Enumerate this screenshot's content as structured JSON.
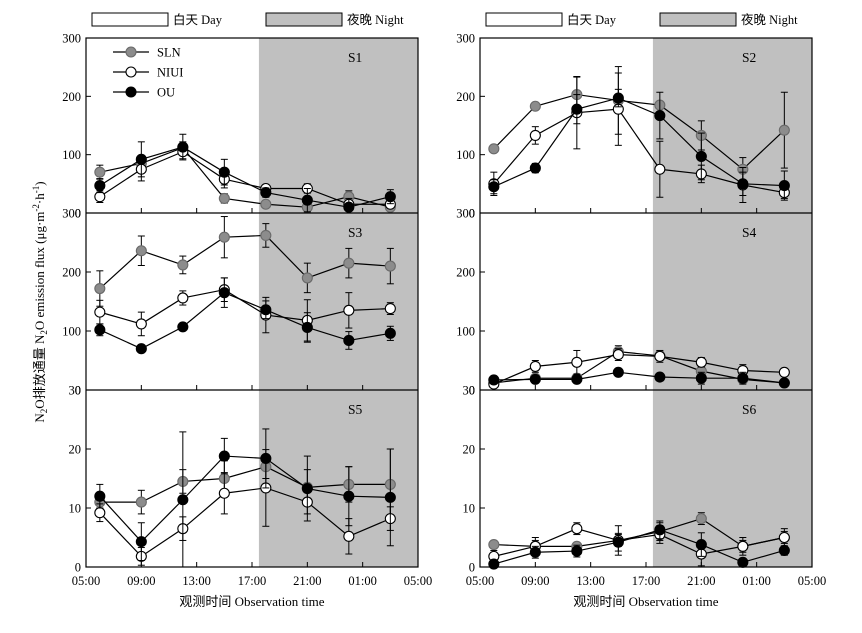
{
  "legend_bands": {
    "day": "白天 Day",
    "night": "夜晚 Night"
  },
  "xlabel": "观测时间 Observation time",
  "ylabel_text": "N2O排放通量 N2O emission flux (μg m-2 h-1)",
  "ylabel_parts": [
    "N",
    "2",
    "O排放通量 N",
    "2",
    "O emission flux (μg·m",
    "-2",
    "·h",
    "-1",
    ")"
  ],
  "series_legend": [
    "SLN",
    "NIUI",
    "OU"
  ],
  "x_ticks": [
    "05:00",
    "09:00",
    "13:00",
    "17:00",
    "21:00",
    "01:00",
    "05:00"
  ],
  "colors": {
    "SLN": "#8c8c8c",
    "NIUI": "#ffffff",
    "OU": "#000000",
    "night_band": "#c0c0c0"
  },
  "chart_data": [
    {
      "type": "line",
      "panel": "S1",
      "ylim": [
        0,
        300
      ],
      "yticks": [
        0,
        100,
        200,
        300
      ],
      "x": [
        6,
        9,
        12,
        15,
        18,
        21,
        24,
        27
      ],
      "night_from": 17.5,
      "series": [
        {
          "name": "SLN",
          "values": [
            70,
            85,
            112,
            25,
            15,
            10,
            28,
            10
          ],
          "errors": [
            12,
            12,
            10,
            8,
            5,
            5,
            10,
            5
          ]
        },
        {
          "name": "NIUI",
          "values": [
            28,
            75,
            105,
            58,
            42,
            42,
            15,
            15
          ],
          "errors": [
            10,
            20,
            12,
            15,
            5,
            8,
            5,
            5
          ]
        },
        {
          "name": "OU",
          "values": [
            47,
            92,
            113,
            70,
            35,
            22,
            10,
            28
          ],
          "errors": [
            12,
            30,
            22,
            22,
            8,
            20,
            15,
            12
          ]
        }
      ]
    },
    {
      "type": "line",
      "panel": "S2",
      "ylim": [
        0,
        300
      ],
      "yticks": [
        0,
        100,
        200,
        300
      ],
      "x": [
        6,
        9,
        12,
        15,
        18,
        21,
        24,
        27
      ],
      "night_from": 17.5,
      "series": [
        {
          "name": "SLN",
          "values": [
            110,
            183,
            203,
            193,
            185,
            133,
            75,
            142
          ],
          "errors": [
            5,
            5,
            30,
            58,
            5,
            25,
            20,
            65
          ]
        },
        {
          "name": "NIUI",
          "values": [
            50,
            133,
            172,
            178,
            75,
            67,
            48,
            35
          ],
          "errors": [
            20,
            15,
            62,
            62,
            48,
            15,
            30,
            10
          ]
        },
        {
          "name": "OU",
          "values": [
            45,
            77,
            178,
            197,
            167,
            97,
            50,
            47
          ],
          "errors": [
            12,
            8,
            25,
            15,
            40,
            40,
            20,
            25
          ]
        }
      ]
    },
    {
      "type": "line",
      "panel": "S3",
      "ylim": [
        0,
        300
      ],
      "yticks": [
        0,
        100,
        200,
        300
      ],
      "x": [
        6,
        9,
        12,
        15,
        18,
        21,
        24,
        27
      ],
      "night_from": 17.5,
      "series": [
        {
          "name": "SLN",
          "values": [
            172,
            236,
            212,
            259,
            262,
            190,
            215,
            210
          ],
          "errors": [
            30,
            25,
            15,
            35,
            20,
            25,
            25,
            30
          ]
        },
        {
          "name": "NIUI",
          "values": [
            132,
            112,
            156,
            170,
            127,
            118,
            135,
            138
          ],
          "errors": [
            20,
            20,
            12,
            20,
            30,
            35,
            30,
            10
          ]
        },
        {
          "name": "OU",
          "values": [
            102,
            70,
            107,
            165,
            136,
            106,
            84,
            96
          ],
          "errors": [
            10,
            5,
            5,
            25,
            15,
            25,
            15,
            12
          ]
        }
      ]
    },
    {
      "type": "line",
      "panel": "S4",
      "ylim": [
        0,
        300
      ],
      "yticks": [
        0,
        100,
        200,
        300
      ],
      "x": [
        6,
        9,
        12,
        15,
        18,
        21,
        24,
        27
      ],
      "night_from": 17.5,
      "series": [
        {
          "name": "SLN",
          "values": [
            12,
            20,
            20,
            65,
            58,
            32,
            18,
            12
          ],
          "errors": [
            5,
            5,
            5,
            10,
            8,
            5,
            5,
            5
          ]
        },
        {
          "name": "NIUI",
          "values": [
            10,
            40,
            47,
            60,
            57,
            47,
            33,
            30
          ],
          "errors": [
            5,
            10,
            20,
            10,
            10,
            8,
            10,
            5
          ]
        },
        {
          "name": "OU",
          "values": [
            17,
            18,
            18,
            30,
            22,
            20,
            20,
            12
          ],
          "errors": [
            5,
            5,
            5,
            5,
            5,
            10,
            10,
            5
          ]
        }
      ]
    },
    {
      "type": "line",
      "panel": "S5",
      "ylim": [
        0,
        30
      ],
      "yticks": [
        0,
        10,
        20,
        30
      ],
      "x": [
        6,
        9,
        12,
        15,
        18,
        21,
        24,
        27
      ],
      "night_from": 17.5,
      "series": [
        {
          "name": "SLN",
          "values": [
            11,
            11,
            14.5,
            15,
            17,
            13.5,
            14,
            14
          ],
          "errors": [
            1.5,
            2,
            2,
            3,
            2,
            3,
            3,
            6
          ]
        },
        {
          "name": "NIUI",
          "values": [
            9.2,
            1.8,
            6.5,
            12.5,
            13.4,
            11,
            5.2,
            8.2
          ],
          "errors": [
            1.5,
            1.5,
            2,
            3.5,
            6.5,
            2,
            3,
            2
          ]
        },
        {
          "name": "OU",
          "values": [
            12,
            4.3,
            11.4,
            18.8,
            18.4,
            13.3,
            12,
            11.8
          ],
          "errors": [
            2,
            3.2,
            11.5,
            3,
            5,
            5.5,
            5,
            8.2
          ]
        }
      ]
    },
    {
      "type": "line",
      "panel": "S6",
      "ylim": [
        0,
        30
      ],
      "yticks": [
        0,
        10,
        20,
        30
      ],
      "x": [
        6,
        9,
        12,
        15,
        18,
        21,
        24,
        27
      ],
      "night_from": 17.5,
      "series": [
        {
          "name": "SLN",
          "values": [
            3.8,
            3.5,
            3.5,
            4.5,
            6,
            8.2,
            3.5,
            5
          ],
          "errors": [
            0.5,
            1,
            0.5,
            1,
            1.5,
            1,
            1,
            1
          ]
        },
        {
          "name": "NIUI",
          "values": [
            1.8,
            3.5,
            6.5,
            4.5,
            5.5,
            2.2,
            3.5,
            5
          ],
          "errors": [
            1,
            1.5,
            1,
            2.5,
            1.5,
            2,
            1.5,
            1.5
          ]
        },
        {
          "name": "OU",
          "values": [
            0.5,
            2.5,
            2.7,
            4.2,
            6.3,
            3.8,
            0.8,
            2.8
          ],
          "errors": [
            0.5,
            1,
            1,
            1.5,
            1.5,
            2,
            0.5,
            0.8
          ]
        }
      ]
    }
  ]
}
